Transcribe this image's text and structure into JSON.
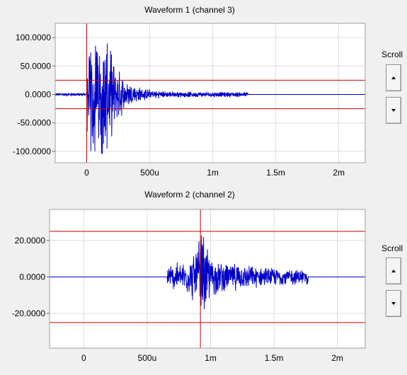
{
  "chart_data": [
    {
      "type": "line",
      "title": "Waveform 1 (channel 3)",
      "x_tick_labels": [
        "0",
        "500u",
        "1m",
        "1.5m",
        "2m"
      ],
      "x_ticks": [
        0,
        0.0005,
        0.001,
        0.0015,
        0.002
      ],
      "xlim": [
        -0.00025,
        0.00221
      ],
      "y_tick_labels": [
        "100.0000",
        "50.0000",
        "0.0000",
        "-50.0000",
        "-100.0000"
      ],
      "y_ticks": [
        100,
        50,
        0,
        -50,
        -100
      ],
      "ylim": [
        -120,
        125
      ],
      "grid": true,
      "series_color": "#0000c8",
      "marker_color": "#c00000",
      "cursor_x": 0,
      "threshold_levels": [
        25,
        -25
      ],
      "signal": {
        "pre_noise_amplitude": 3,
        "burst_start": 0.0,
        "burst_peak_amplitude": 112,
        "burst_peak_time": 0.00015,
        "decay_end": 0.00128,
        "tail_amplitude": 5,
        "flat_after": 0.00128
      }
    },
    {
      "type": "line",
      "title": "Waveform 2 (channel 2)",
      "x_tick_labels": [
        "0",
        "500u",
        "1m",
        "1.5m",
        "2m"
      ],
      "x_ticks": [
        0,
        0.0005,
        0.001,
        0.0015,
        0.002
      ],
      "xlim": [
        -0.00027,
        0.00222
      ],
      "y_tick_labels": [
        "20.0000",
        "0.0000",
        "-20.0000"
      ],
      "y_ticks": [
        20,
        0,
        -20
      ],
      "ylim": [
        -39,
        37
      ],
      "grid": true,
      "series_color": "#0000c8",
      "marker_color": "#c00000",
      "cursor_x": 0.00092,
      "threshold_levels": [
        25,
        -25
      ],
      "signal": {
        "start": 0.00066,
        "end": 0.00177,
        "peak_time": 0.00093,
        "peak_amplitude": 32,
        "base_amplitude": 8,
        "tail_amplitude": 4,
        "flat_after": 0.00177
      }
    }
  ],
  "controls": {
    "scroll_label": "Scroll"
  }
}
